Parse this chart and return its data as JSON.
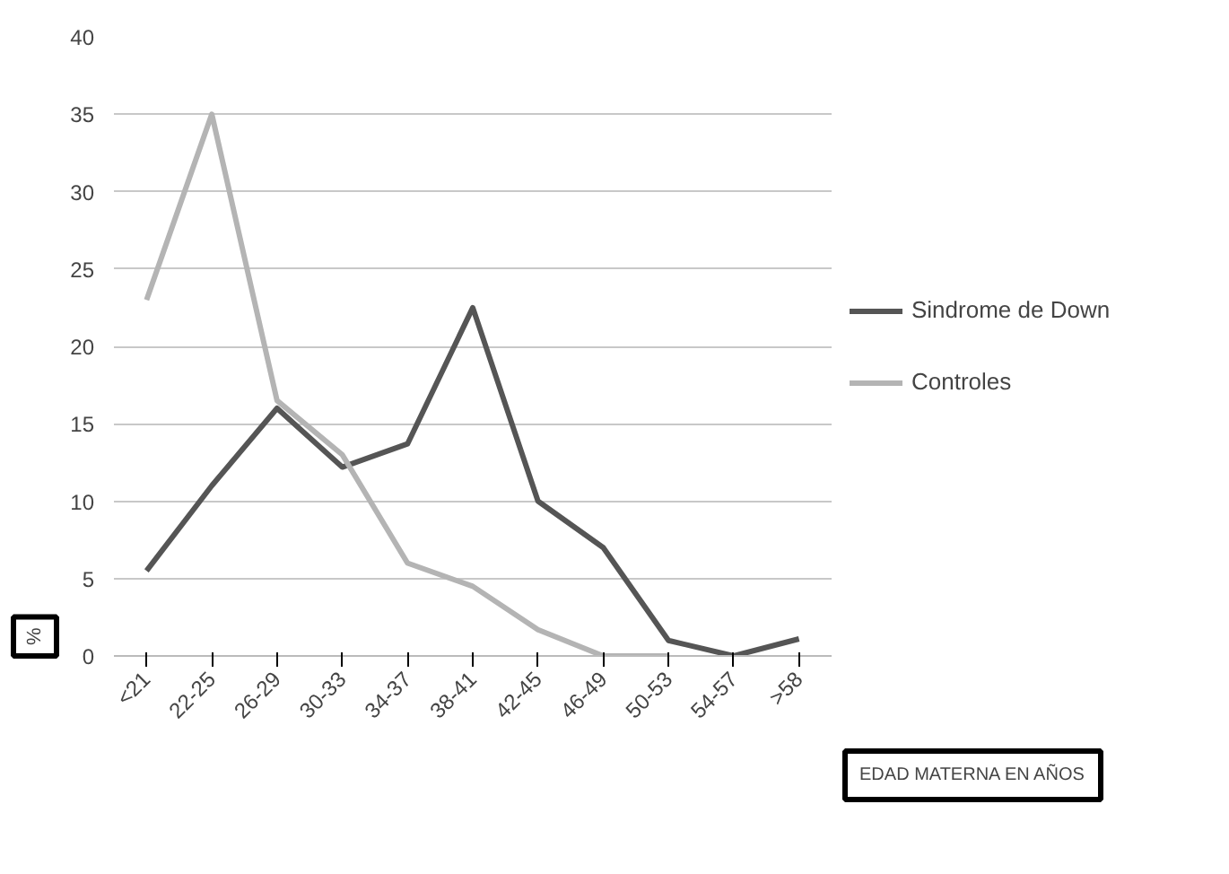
{
  "chart_data": {
    "type": "line",
    "xlabel": "EDAD MATERNA EN AÑOS",
    "ylabel": "%",
    "categories": [
      "<21",
      "22-25",
      "26-29",
      "30-33",
      "34-37",
      "38-41",
      "42-45",
      "46-49",
      "50-53",
      "54-57",
      ">58"
    ],
    "series": [
      {
        "name": "Sindrome de Down",
        "color": "#555555",
        "values": [
          5.5,
          11,
          16,
          12.2,
          13.7,
          22.5,
          10,
          7,
          1,
          0,
          1.1
        ]
      },
      {
        "name": "Controles",
        "color": "#b4b4b4",
        "values": [
          23,
          35,
          16.5,
          13,
          6,
          4.5,
          1.7,
          0,
          0,
          null,
          null
        ]
      }
    ],
    "ylim": [
      0,
      40
    ],
    "yticks": [
      0,
      5,
      10,
      15,
      20,
      25,
      30,
      35,
      40
    ],
    "grid": "y",
    "legend": "right",
    "marker": "none",
    "line_style": "solid"
  }
}
